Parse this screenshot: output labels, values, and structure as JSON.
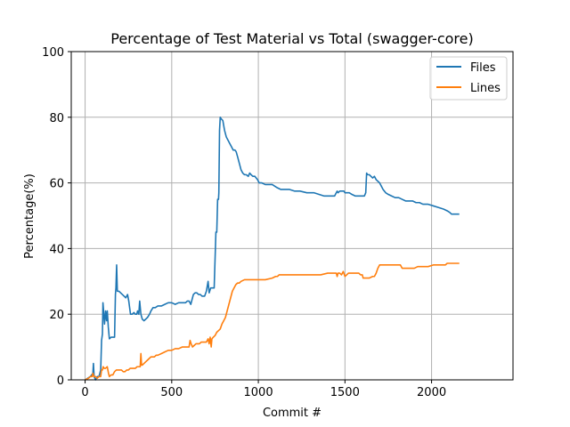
{
  "chart_data": {
    "type": "line",
    "title": "Percentage of Test Material vs Total (swagger-core)",
    "xlabel": "Commit #",
    "ylabel": "Percentage(%)",
    "xlim": [
      -80,
      2470
    ],
    "ylim": [
      0,
      100
    ],
    "xticks": [
      0,
      500,
      1000,
      1500,
      2000
    ],
    "yticks": [
      0,
      20,
      40,
      60,
      80,
      100
    ],
    "grid": true,
    "legend_position": "top-right",
    "series": [
      {
        "name": "Files",
        "color": "#1f77b4",
        "points": [
          [
            0,
            0
          ],
          [
            30,
            1
          ],
          [
            45,
            2
          ],
          [
            48,
            5
          ],
          [
            52,
            1
          ],
          [
            60,
            0
          ],
          [
            70,
            1
          ],
          [
            80,
            1
          ],
          [
            90,
            3
          ],
          [
            95,
            12
          ],
          [
            100,
            14
          ],
          [
            103,
            23.5
          ],
          [
            108,
            20
          ],
          [
            112,
            17
          ],
          [
            118,
            21
          ],
          [
            124,
            18
          ],
          [
            128,
            21
          ],
          [
            134,
            16
          ],
          [
            140,
            12.5
          ],
          [
            150,
            13
          ],
          [
            160,
            13
          ],
          [
            170,
            13
          ],
          [
            175,
            26
          ],
          [
            178,
            28
          ],
          [
            182,
            35
          ],
          [
            186,
            27
          ],
          [
            195,
            27
          ],
          [
            205,
            26.5
          ],
          [
            215,
            26
          ],
          [
            225,
            25.5
          ],
          [
            235,
            25
          ],
          [
            245,
            26
          ],
          [
            252,
            24
          ],
          [
            262,
            20
          ],
          [
            272,
            20
          ],
          [
            282,
            20.5
          ],
          [
            290,
            20
          ],
          [
            298,
            20
          ],
          [
            303,
            21
          ],
          [
            310,
            20
          ],
          [
            315,
            24
          ],
          [
            322,
            20
          ],
          [
            330,
            18.5
          ],
          [
            340,
            18
          ],
          [
            350,
            18.5
          ],
          [
            360,
            19
          ],
          [
            372,
            20
          ],
          [
            380,
            21
          ],
          [
            392,
            22
          ],
          [
            405,
            22
          ],
          [
            420,
            22.5
          ],
          [
            440,
            22.5
          ],
          [
            460,
            23
          ],
          [
            480,
            23.5
          ],
          [
            500,
            23.5
          ],
          [
            520,
            23
          ],
          [
            540,
            23.5
          ],
          [
            560,
            23.5
          ],
          [
            580,
            23.5
          ],
          [
            590,
            24
          ],
          [
            600,
            24
          ],
          [
            610,
            23
          ],
          [
            620,
            25
          ],
          [
            625,
            26
          ],
          [
            635,
            26.5
          ],
          [
            645,
            26.5
          ],
          [
            655,
            26
          ],
          [
            665,
            26
          ],
          [
            675,
            25.5
          ],
          [
            690,
            25.5
          ],
          [
            700,
            27
          ],
          [
            710,
            30
          ],
          [
            716,
            26.5
          ],
          [
            725,
            28
          ],
          [
            735,
            28
          ],
          [
            745,
            28
          ],
          [
            755,
            45
          ],
          [
            760,
            45
          ],
          [
            765,
            55
          ],
          [
            770,
            55
          ],
          [
            772,
            57
          ],
          [
            776,
            76
          ],
          [
            780,
            80
          ],
          [
            786,
            79.5
          ],
          [
            795,
            79
          ],
          [
            805,
            76
          ],
          [
            815,
            74
          ],
          [
            825,
            73
          ],
          [
            835,
            72
          ],
          [
            845,
            71
          ],
          [
            855,
            70
          ],
          [
            865,
            70
          ],
          [
            872,
            69.5
          ],
          [
            880,
            68
          ],
          [
            890,
            66
          ],
          [
            900,
            64
          ],
          [
            910,
            63
          ],
          [
            920,
            62.5
          ],
          [
            930,
            62.5
          ],
          [
            942,
            62
          ],
          [
            950,
            63
          ],
          [
            958,
            62.5
          ],
          [
            968,
            62
          ],
          [
            980,
            62
          ],
          [
            995,
            61
          ],
          [
            1005,
            60
          ],
          [
            1020,
            60
          ],
          [
            1040,
            59.5
          ],
          [
            1060,
            59.5
          ],
          [
            1080,
            59.5
          ],
          [
            1095,
            59
          ],
          [
            1110,
            58.5
          ],
          [
            1130,
            58
          ],
          [
            1150,
            58
          ],
          [
            1180,
            58
          ],
          [
            1210,
            57.5
          ],
          [
            1240,
            57.5
          ],
          [
            1280,
            57
          ],
          [
            1320,
            57
          ],
          [
            1350,
            56.5
          ],
          [
            1380,
            56
          ],
          [
            1400,
            56
          ],
          [
            1420,
            56
          ],
          [
            1440,
            56
          ],
          [
            1450,
            57
          ],
          [
            1455,
            57.5
          ],
          [
            1460,
            57
          ],
          [
            1470,
            57.5
          ],
          [
            1478,
            57.5
          ],
          [
            1486,
            57.5
          ],
          [
            1494,
            57.5
          ],
          [
            1500,
            57
          ],
          [
            1510,
            57
          ],
          [
            1525,
            57
          ],
          [
            1540,
            56.5
          ],
          [
            1560,
            56
          ],
          [
            1580,
            56
          ],
          [
            1600,
            56
          ],
          [
            1612,
            56
          ],
          [
            1620,
            57
          ],
          [
            1625,
            63
          ],
          [
            1630,
            62.5
          ],
          [
            1640,
            62.5
          ],
          [
            1650,
            62
          ],
          [
            1660,
            61.5
          ],
          [
            1670,
            62
          ],
          [
            1680,
            61
          ],
          [
            1690,
            60.5
          ],
          [
            1700,
            60
          ],
          [
            1710,
            59
          ],
          [
            1720,
            58
          ],
          [
            1735,
            57
          ],
          [
            1750,
            56.5
          ],
          [
            1770,
            56
          ],
          [
            1790,
            55.5
          ],
          [
            1810,
            55.5
          ],
          [
            1830,
            55
          ],
          [
            1850,
            54.5
          ],
          [
            1870,
            54.5
          ],
          [
            1890,
            54.5
          ],
          [
            1910,
            54
          ],
          [
            1930,
            54
          ],
          [
            1950,
            53.5
          ],
          [
            1980,
            53.5
          ],
          [
            2010,
            53
          ],
          [
            2040,
            52.5
          ],
          [
            2070,
            52
          ],
          [
            2090,
            51.5
          ],
          [
            2105,
            51
          ],
          [
            2115,
            50.5
          ],
          [
            2130,
            50.5
          ],
          [
            2150,
            50.5
          ],
          [
            2160,
            50.5
          ]
        ]
      },
      {
        "name": "Lines",
        "color": "#ff7f0e",
        "points": [
          [
            0,
            0
          ],
          [
            20,
            0.5
          ],
          [
            30,
            1
          ],
          [
            40,
            1
          ],
          [
            45,
            2
          ],
          [
            50,
            1
          ],
          [
            60,
            1
          ],
          [
            70,
            0.5
          ],
          [
            80,
            1
          ],
          [
            90,
            1
          ],
          [
            95,
            3
          ],
          [
            100,
            3
          ],
          [
            104,
            4
          ],
          [
            110,
            3.5
          ],
          [
            118,
            3.5
          ],
          [
            128,
            4
          ],
          [
            135,
            2
          ],
          [
            140,
            1
          ],
          [
            150,
            1.5
          ],
          [
            160,
            1.5
          ],
          [
            170,
            2.5
          ],
          [
            180,
            3
          ],
          [
            190,
            3
          ],
          [
            200,
            3
          ],
          [
            210,
            3
          ],
          [
            220,
            2.5
          ],
          [
            230,
            2.5
          ],
          [
            240,
            3
          ],
          [
            250,
            3
          ],
          [
            260,
            3.5
          ],
          [
            270,
            3.5
          ],
          [
            280,
            3.5
          ],
          [
            290,
            3.5
          ],
          [
            300,
            4
          ],
          [
            310,
            4
          ],
          [
            318,
            4
          ],
          [
            322,
            8
          ],
          [
            326,
            4.5
          ],
          [
            330,
            4.5
          ],
          [
            340,
            5
          ],
          [
            350,
            5.5
          ],
          [
            360,
            6
          ],
          [
            370,
            6.5
          ],
          [
            380,
            7
          ],
          [
            390,
            7
          ],
          [
            400,
            7
          ],
          [
            410,
            7.5
          ],
          [
            420,
            7.5
          ],
          [
            440,
            8
          ],
          [
            460,
            8.5
          ],
          [
            480,
            9
          ],
          [
            500,
            9
          ],
          [
            520,
            9.5
          ],
          [
            540,
            9.5
          ],
          [
            560,
            10
          ],
          [
            580,
            10
          ],
          [
            590,
            10
          ],
          [
            600,
            10
          ],
          [
            606,
            12
          ],
          [
            612,
            11
          ],
          [
            620,
            10
          ],
          [
            630,
            10.5
          ],
          [
            640,
            11
          ],
          [
            650,
            11
          ],
          [
            660,
            11
          ],
          [
            670,
            11.5
          ],
          [
            680,
            11.5
          ],
          [
            690,
            11.5
          ],
          [
            700,
            11.5
          ],
          [
            710,
            12.5
          ],
          [
            716,
            11
          ],
          [
            722,
            13
          ],
          [
            728,
            10
          ],
          [
            732,
            12.5
          ],
          [
            740,
            13
          ],
          [
            750,
            13.5
          ],
          [
            760,
            14.5
          ],
          [
            770,
            15
          ],
          [
            780,
            15.5
          ],
          [
            790,
            17
          ],
          [
            800,
            18
          ],
          [
            810,
            19
          ],
          [
            820,
            21
          ],
          [
            830,
            23
          ],
          [
            840,
            25
          ],
          [
            850,
            27
          ],
          [
            860,
            28
          ],
          [
            870,
            29
          ],
          [
            880,
            29.5
          ],
          [
            890,
            29.5
          ],
          [
            900,
            30
          ],
          [
            920,
            30.5
          ],
          [
            950,
            30.5
          ],
          [
            1000,
            30.5
          ],
          [
            1040,
            30.5
          ],
          [
            1080,
            31
          ],
          [
            1100,
            31.5
          ],
          [
            1110,
            31.5
          ],
          [
            1120,
            32
          ],
          [
            1150,
            32
          ],
          [
            1180,
            32
          ],
          [
            1210,
            32
          ],
          [
            1240,
            32
          ],
          [
            1280,
            32
          ],
          [
            1320,
            32
          ],
          [
            1360,
            32
          ],
          [
            1400,
            32.5
          ],
          [
            1430,
            32.5
          ],
          [
            1450,
            32.5
          ],
          [
            1455,
            31.5
          ],
          [
            1460,
            32.5
          ],
          [
            1470,
            32.5
          ],
          [
            1480,
            32
          ],
          [
            1490,
            33
          ],
          [
            1500,
            31.5
          ],
          [
            1510,
            32
          ],
          [
            1520,
            32.5
          ],
          [
            1530,
            32.5
          ],
          [
            1540,
            32.5
          ],
          [
            1550,
            32.5
          ],
          [
            1560,
            32.5
          ],
          [
            1570,
            32.5
          ],
          [
            1580,
            32.5
          ],
          [
            1590,
            32
          ],
          [
            1600,
            32
          ],
          [
            1605,
            31
          ],
          [
            1620,
            31
          ],
          [
            1640,
            31
          ],
          [
            1660,
            31.5
          ],
          [
            1670,
            31.5
          ],
          [
            1680,
            32.5
          ],
          [
            1690,
            34
          ],
          [
            1700,
            35
          ],
          [
            1720,
            35
          ],
          [
            1740,
            35
          ],
          [
            1770,
            35
          ],
          [
            1800,
            35
          ],
          [
            1820,
            35
          ],
          [
            1830,
            34
          ],
          [
            1850,
            34
          ],
          [
            1880,
            34
          ],
          [
            1900,
            34
          ],
          [
            1920,
            34.5
          ],
          [
            1950,
            34.5
          ],
          [
            1980,
            34.5
          ],
          [
            2010,
            35
          ],
          [
            2040,
            35
          ],
          [
            2070,
            35
          ],
          [
            2080,
            35
          ],
          [
            2090,
            35.5
          ],
          [
            2100,
            35.5
          ],
          [
            2110,
            35.5
          ],
          [
            2130,
            35.5
          ],
          [
            2160,
            35.5
          ]
        ]
      }
    ]
  }
}
